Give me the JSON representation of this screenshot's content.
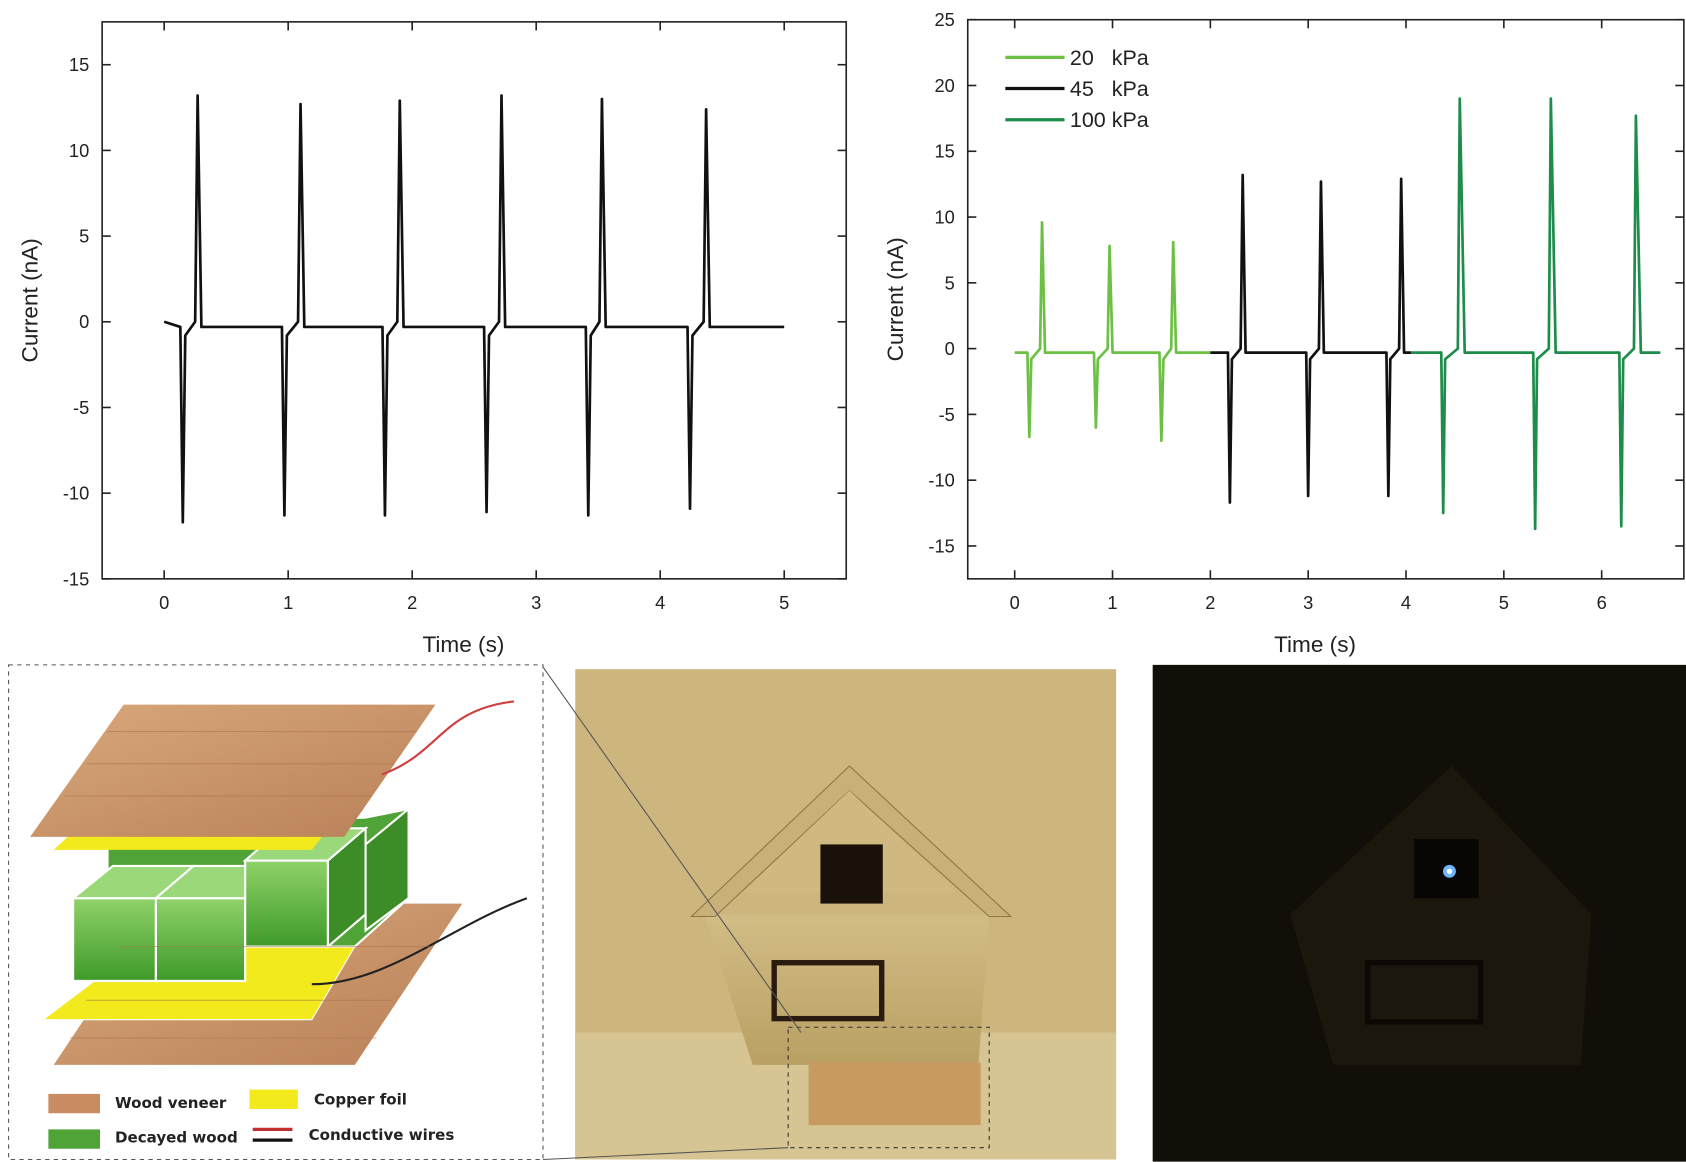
{
  "chart_data": [
    {
      "type": "line",
      "xlabel": "Time (s)",
      "ylabel": "Current (nA)",
      "xlim": [
        -0.5,
        5.5
      ],
      "ylim": [
        -15,
        17.5
      ],
      "xticks": [
        0,
        1,
        2,
        3,
        4,
        5
      ],
      "yticks": [
        -15,
        -10,
        -5,
        0,
        5,
        10,
        15
      ],
      "color": "#111111",
      "x": [
        0,
        0.13,
        0.15,
        0.17,
        0.25,
        0.27,
        0.3,
        0.95,
        0.97,
        0.99,
        1.08,
        1.1,
        1.13,
        1.76,
        1.78,
        1.8,
        1.88,
        1.9,
        1.93,
        2.58,
        2.6,
        2.62,
        2.7,
        2.72,
        2.75,
        3.4,
        3.42,
        3.44,
        3.51,
        3.53,
        3.56,
        4.22,
        4.24,
        4.26,
        4.35,
        4.37,
        4.4,
        5.0
      ],
      "values": [
        0,
        -0.3,
        -11.7,
        -0.8,
        0,
        13.2,
        -0.3,
        -0.3,
        -11.3,
        -0.8,
        0,
        12.7,
        -0.3,
        -0.3,
        -11.3,
        -0.8,
        0,
        12.9,
        -0.3,
        -0.3,
        -11.1,
        -0.8,
        0,
        13.2,
        -0.3,
        -0.3,
        -11.3,
        -0.8,
        0,
        13.0,
        -0.3,
        -0.3,
        -10.9,
        -0.8,
        0,
        12.4,
        -0.3,
        -0.3
      ]
    },
    {
      "type": "line",
      "xlabel": "Time (s)",
      "ylabel": "Current (nA)",
      "xlim": [
        -0.48,
        6.84
      ],
      "ylim": [
        -17.5,
        25
      ],
      "xticks": [
        0,
        1,
        2,
        3,
        4,
        5,
        6
      ],
      "yticks": [
        -15,
        -10,
        -5,
        0,
        5,
        10,
        15,
        20,
        25
      ],
      "legend": "upper left",
      "series": [
        {
          "name": "20   kPa",
          "color": "#6cc043",
          "x": [
            0,
            0.13,
            0.15,
            0.17,
            0.26,
            0.28,
            0.31,
            0.81,
            0.83,
            0.85,
            0.95,
            0.97,
            1.0,
            1.48,
            1.5,
            1.52,
            1.6,
            1.62,
            1.65,
            2.0
          ],
          "values": [
            -0.3,
            -0.3,
            -6.7,
            -0.8,
            0,
            9.6,
            -0.3,
            -0.3,
            -6.0,
            -0.8,
            0,
            7.8,
            -0.3,
            -0.3,
            -7.0,
            -0.8,
            0,
            8.1,
            -0.3,
            -0.3
          ]
        },
        {
          "name": "45   kPa",
          "color": "#111111",
          "x": [
            2.0,
            2.18,
            2.2,
            2.22,
            2.31,
            2.33,
            2.36,
            2.98,
            3.0,
            3.02,
            3.11,
            3.13,
            3.16,
            3.8,
            3.82,
            3.84,
            3.93,
            3.95,
            3.98,
            4.05
          ],
          "values": [
            -0.3,
            -0.3,
            -11.7,
            -0.8,
            0,
            13.2,
            -0.3,
            -0.3,
            -11.2,
            -0.8,
            0,
            12.7,
            -0.3,
            -0.3,
            -11.2,
            -0.8,
            0,
            12.9,
            -0.3,
            -0.3
          ]
        },
        {
          "name": "100 kPa",
          "color": "#1e8c4a",
          "x": [
            4.05,
            4.36,
            4.38,
            4.4,
            4.53,
            4.55,
            4.6,
            5.3,
            5.32,
            5.34,
            5.46,
            5.48,
            5.53,
            6.18,
            6.2,
            6.22,
            6.33,
            6.35,
            6.4,
            6.6
          ],
          "values": [
            -0.3,
            -0.3,
            -12.5,
            -0.8,
            0,
            19,
            -0.3,
            -0.3,
            -13.7,
            -0.8,
            0,
            19,
            -0.3,
            -0.3,
            -13.5,
            -0.8,
            0,
            17.7,
            -0.3,
            -0.3
          ]
        }
      ]
    }
  ],
  "diagram": {
    "legend": [
      "Wood veneer",
      "Copper foil",
      "Decayed wood",
      "Conductive wires"
    ]
  }
}
